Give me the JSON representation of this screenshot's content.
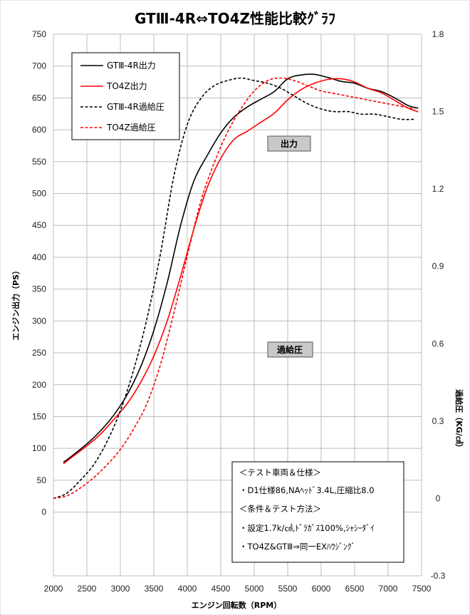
{
  "chart_data": {
    "type": "line",
    "title": "GTⅢ-4R⇔TO4Z性能比較ｸﾞﾗﾌ",
    "xlabel": "エンジン回転数（RPM）",
    "ylabel": "エンジン出力（PS）",
    "y2label": "過給圧（KG/㎠）",
    "xlim": [
      2000,
      7500
    ],
    "ylim": [
      -100,
      750
    ],
    "y2lim": [
      -0.3,
      1.8
    ],
    "x_ticks": [
      "2000",
      "2500",
      "3000",
      "3500",
      "4000",
      "4500",
      "5000",
      "5500",
      "6000",
      "6500",
      "7000",
      "7500"
    ],
    "y_ticks": [
      "0",
      "50",
      "100",
      "150",
      "200",
      "250",
      "300",
      "350",
      "400",
      "450",
      "500",
      "550",
      "600",
      "650",
      "700",
      "750"
    ],
    "y2_ticks": [
      "-0.3",
      "0",
      "0.3",
      "0.6",
      "0.9",
      "1.2",
      "1.5",
      "1.8"
    ],
    "grid": true,
    "legend_position": "top-left",
    "series": [
      {
        "name": "GTⅢ-4R出力",
        "axis": "left",
        "color": "#000000",
        "dash": "solid",
        "x": [
          2150,
          2300,
          2500,
          2700,
          2900,
          3100,
          3300,
          3500,
          3700,
          3900,
          4100,
          4300,
          4500,
          4700,
          4900,
          5100,
          5300,
          5500,
          5700,
          5900,
          6100,
          6300,
          6500,
          6700,
          6900,
          7100,
          7300,
          7450
        ],
        "y": [
          78,
          90,
          107,
          127,
          152,
          184,
          227,
          285,
          360,
          450,
          520,
          560,
          595,
          620,
          636,
          648,
          660,
          680,
          686,
          687,
          682,
          676,
          673,
          665,
          660,
          650,
          638,
          634
        ]
      },
      {
        "name": "TO4Z出力",
        "axis": "left",
        "color": "#ff0000",
        "dash": "solid",
        "x": [
          2150,
          2300,
          2500,
          2700,
          2900,
          3100,
          3300,
          3500,
          3700,
          3900,
          4100,
          4300,
          4500,
          4700,
          4900,
          5100,
          5300,
          5500,
          5700,
          5900,
          6100,
          6300,
          6500,
          6700,
          6900,
          7100,
          7300,
          7450
        ],
        "y": [
          76,
          88,
          104,
          122,
          145,
          170,
          203,
          245,
          300,
          370,
          445,
          510,
          555,
          585,
          598,
          612,
          626,
          647,
          663,
          673,
          679,
          680,
          675,
          665,
          658,
          646,
          634,
          628
        ]
      },
      {
        "name": "GTⅢ-4R過給圧",
        "axis": "right",
        "color": "#000000",
        "dash": "dashed",
        "x": [
          2000,
          2200,
          2400,
          2600,
          2800,
          3000,
          3200,
          3400,
          3600,
          3800,
          4000,
          4200,
          4400,
          4600,
          4800,
          5000,
          5200,
          5400,
          5600,
          5800,
          6000,
          6200,
          6400,
          6600,
          6800,
          7000,
          7200,
          7400
        ],
        "y": [
          0,
          0.02,
          0.07,
          0.13,
          0.22,
          0.34,
          0.5,
          0.7,
          0.95,
          1.25,
          1.45,
          1.55,
          1.6,
          1.62,
          1.63,
          1.62,
          1.61,
          1.59,
          1.56,
          1.53,
          1.51,
          1.5,
          1.5,
          1.49,
          1.49,
          1.48,
          1.47,
          1.47
        ]
      },
      {
        "name": "TO4Z過給圧",
        "axis": "right",
        "color": "#ff0000",
        "dash": "dashed",
        "x": [
          2000,
          2200,
          2400,
          2600,
          2800,
          3000,
          3200,
          3400,
          3600,
          3800,
          4000,
          4200,
          4400,
          4600,
          4800,
          5000,
          5200,
          5400,
          5600,
          5800,
          6000,
          6200,
          6400,
          6600,
          6800,
          7000,
          7200,
          7400
        ],
        "y": [
          0,
          0.01,
          0.04,
          0.08,
          0.13,
          0.19,
          0.27,
          0.37,
          0.52,
          0.72,
          0.94,
          1.15,
          1.3,
          1.42,
          1.51,
          1.58,
          1.62,
          1.63,
          1.62,
          1.6,
          1.58,
          1.57,
          1.56,
          1.55,
          1.54,
          1.53,
          1.52,
          1.51
        ]
      }
    ],
    "annotations": [
      "出力",
      "過給圧"
    ],
    "notes": [
      "＜テスト車両＆仕様＞",
      "・D1仕様86,NAﾍｯﾄﾞ3.4L,圧縮比8.0",
      "＜条件＆テスト方法＞",
      "・設定1.7k/㎠,ﾄﾞﾗｶﾞｽ100%,ｼｬｼｰﾀﾞｲ",
      "・TO4Z&GTⅢ⇒同一EXﾊｳｼﾞﾝｸﾞ"
    ]
  }
}
